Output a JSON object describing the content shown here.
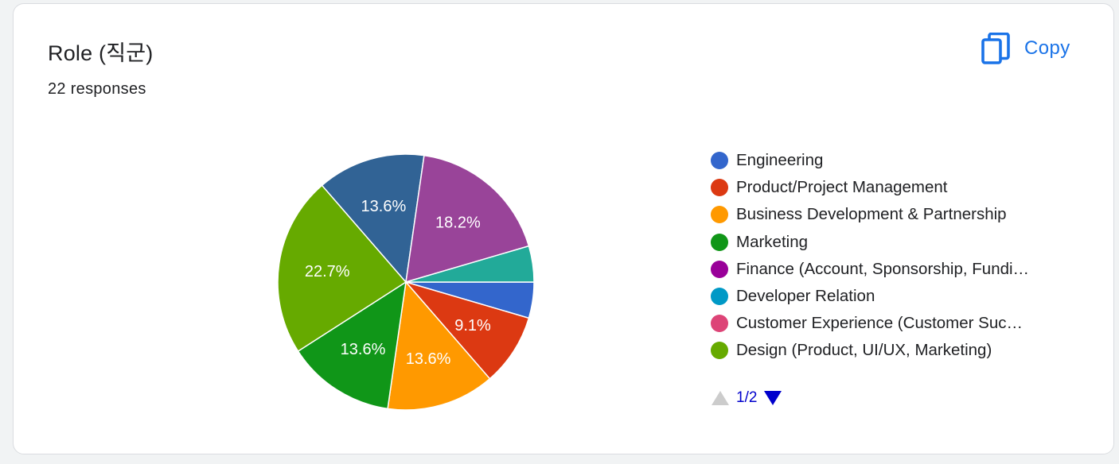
{
  "title": "Role (직군)",
  "responses": "22 responses",
  "copy": {
    "label": "Copy",
    "icon": "copy-icon"
  },
  "colors": {
    "accent": "#1a73e8",
    "pager_active": "#0000cc",
    "pager_inactive": "#cccccc"
  },
  "pager": {
    "text": "1/2"
  },
  "chart_data": {
    "type": "pie",
    "total": 22,
    "slices": [
      {
        "label": "Engineering",
        "count": 1,
        "pct_label": "",
        "color": "#3366cc"
      },
      {
        "label": "Product/Project Management",
        "count": 2,
        "pct_label": "9.1%",
        "color": "#dc3912"
      },
      {
        "label": "Business Development & Partnership",
        "count": 3,
        "pct_label": "13.6%",
        "color": "#ff9900"
      },
      {
        "label": "Marketing",
        "count": 3,
        "pct_label": "13.6%",
        "color": "#109618"
      },
      {
        "label": "Design (Product, UI/UX, Marketing)",
        "count": 5,
        "pct_label": "22.7%",
        "color": "#66aa00"
      },
      {
        "label": "",
        "count": 3,
        "pct_label": "13.6%",
        "color": "#316395"
      },
      {
        "label": "",
        "count": 4,
        "pct_label": "18.2%",
        "color": "#994499"
      },
      {
        "label": "",
        "count": 1,
        "pct_label": "",
        "color": "#22aa99"
      }
    ]
  },
  "legend": [
    {
      "label": "Engineering",
      "color": "#3366cc"
    },
    {
      "label": "Product/Project Management",
      "color": "#dc3912"
    },
    {
      "label": "Business Development & Partnership",
      "color": "#ff9900"
    },
    {
      "label": "Marketing",
      "color": "#109618"
    },
    {
      "label": "Finance (Account, Sponsorship, Fundi…",
      "color": "#990099"
    },
    {
      "label": "Developer Relation",
      "color": "#0099c6"
    },
    {
      "label": "Customer Experience (Customer Suc…",
      "color": "#dd4477"
    },
    {
      "label": "Design (Product, UI/UX, Marketing)",
      "color": "#66aa00"
    }
  ]
}
